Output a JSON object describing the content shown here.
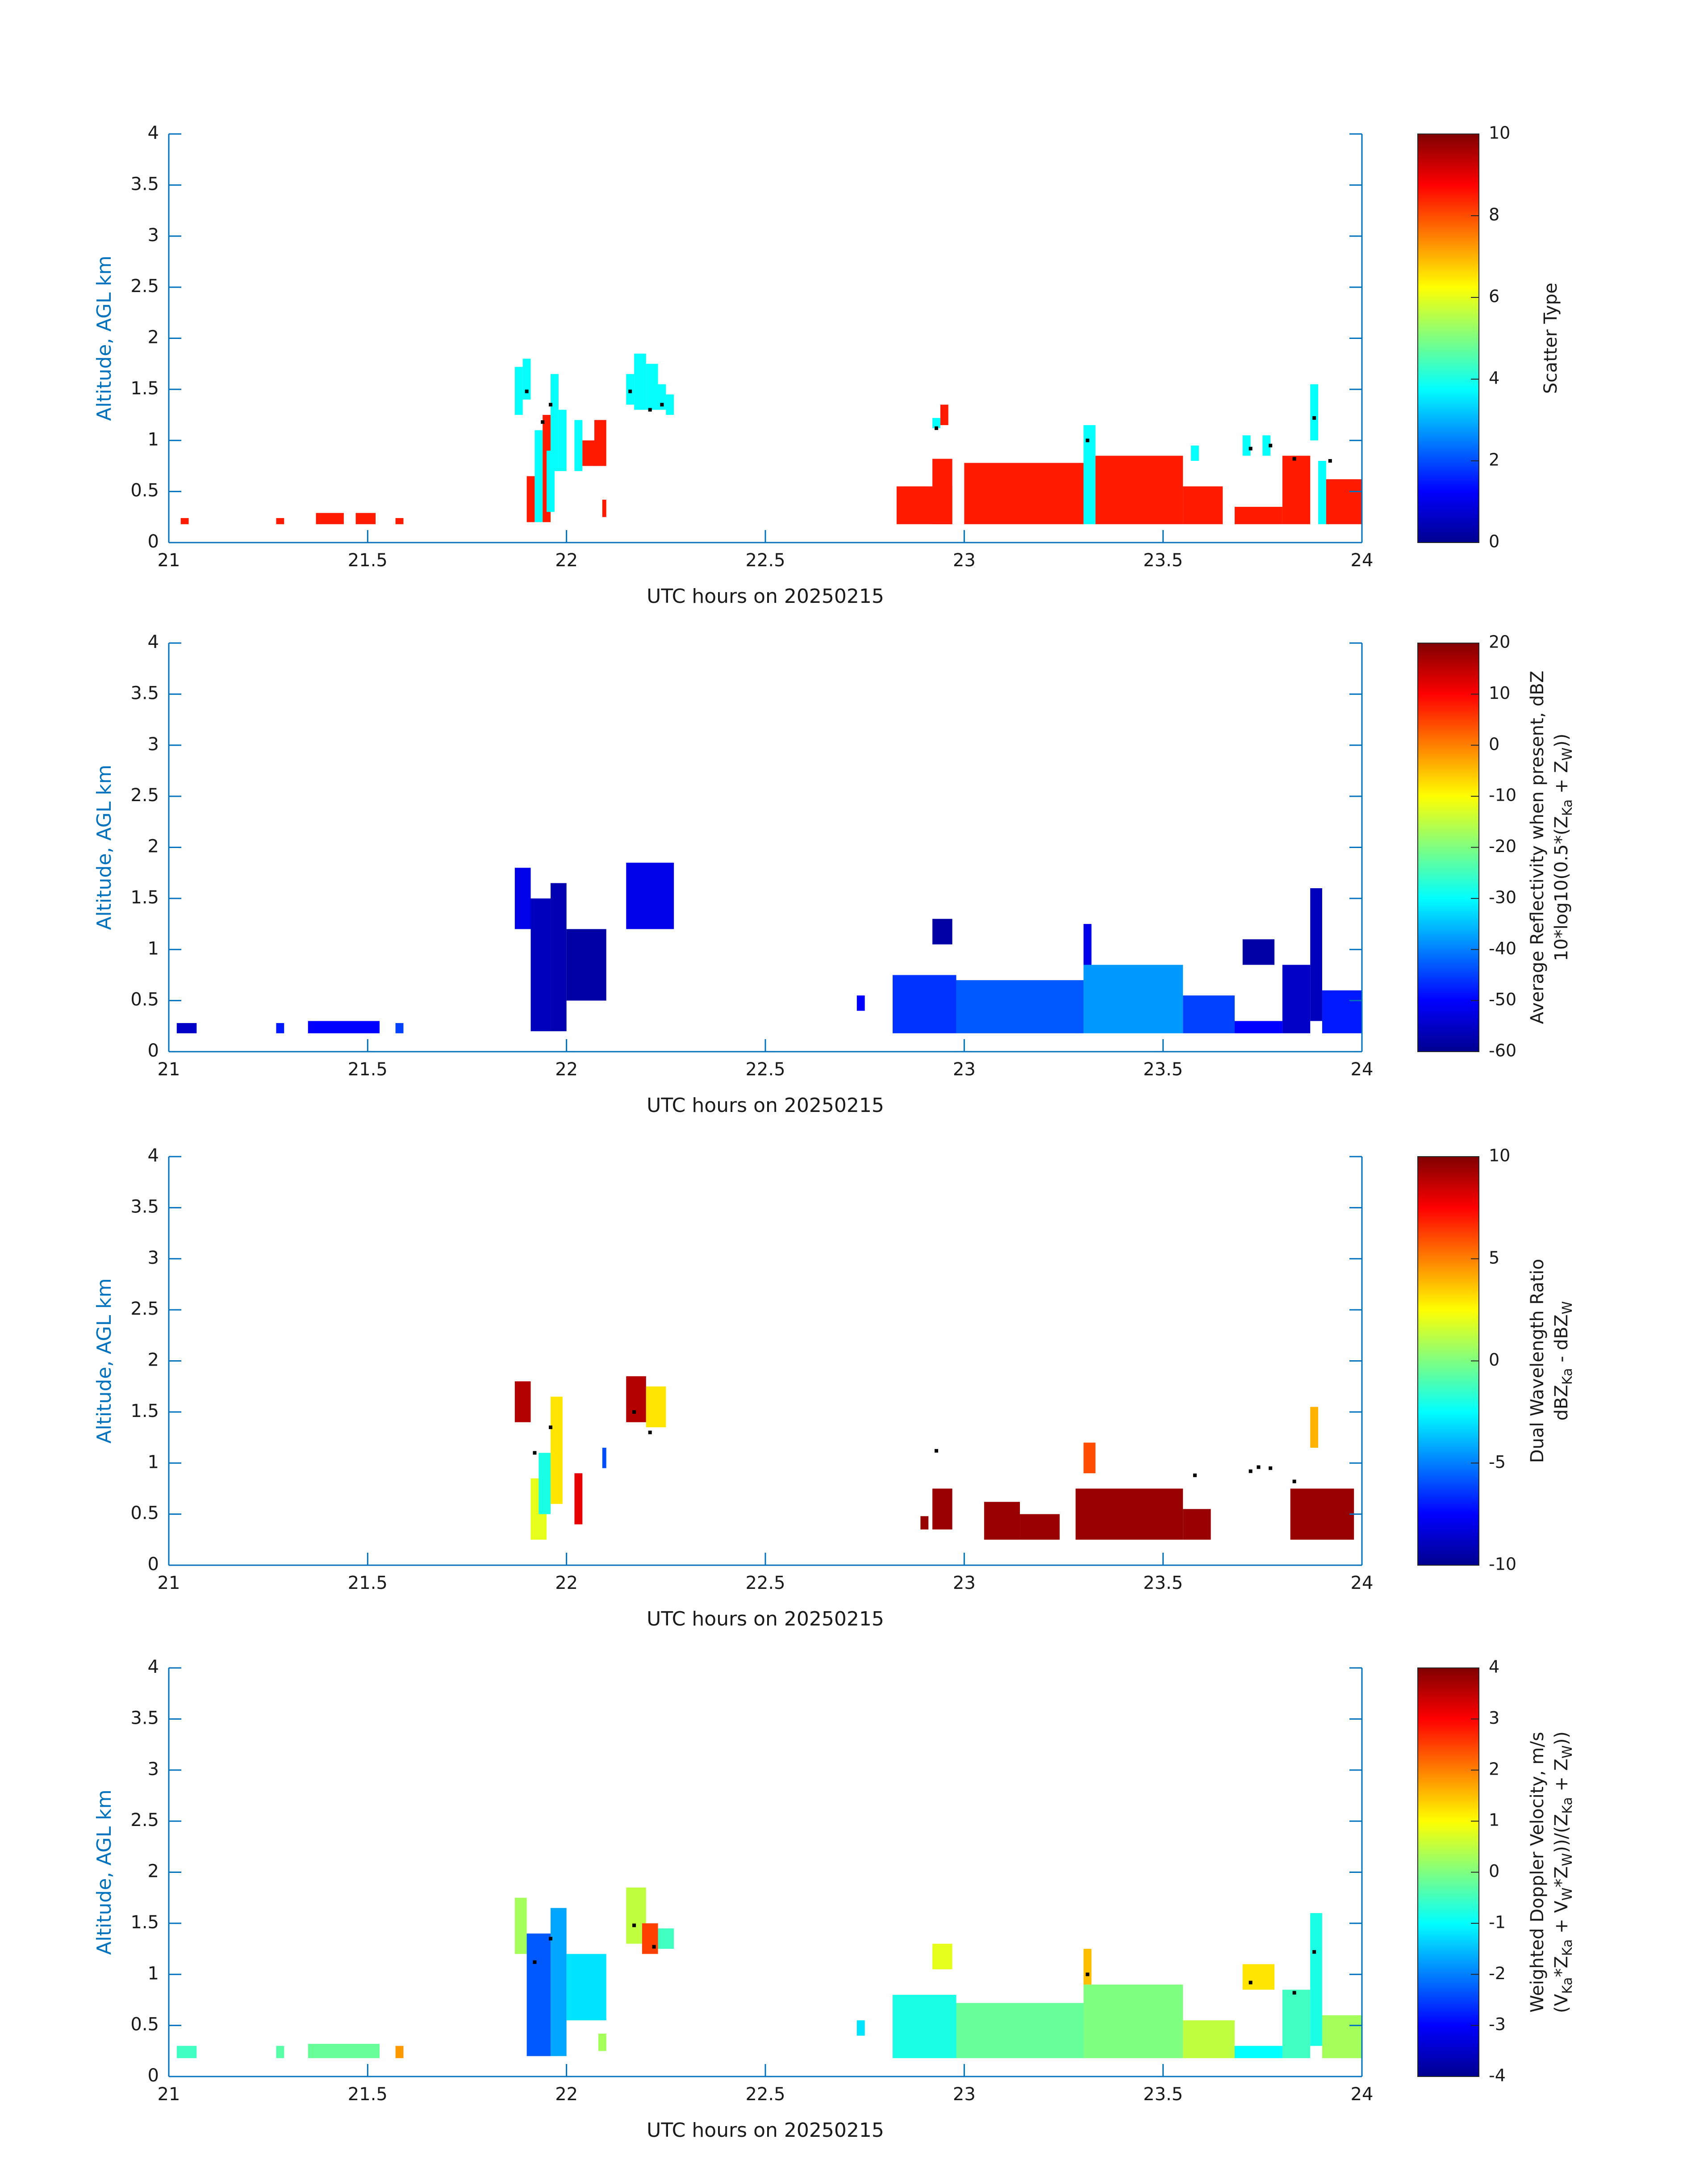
{
  "chart_data": [
    {
      "type": "heatmap",
      "name": "scatter-type",
      "xlabel": "UTC hours on 20250215",
      "ylabel": "Altitude, AGL km",
      "xlim": [
        21,
        24
      ],
      "ylim": [
        0,
        4
      ],
      "xticks": [
        "21",
        "21.5",
        "22",
        "22.5",
        "23",
        "23.5",
        "24"
      ],
      "yticks": [
        "0",
        "0.5",
        "1",
        "1.5",
        "2",
        "2.5",
        "3",
        "3.5",
        "4"
      ],
      "colorbar": {
        "label": "Scatter Type",
        "label_lines": [
          "Scatter Type"
        ],
        "clim": [
          0,
          10
        ],
        "ticks": [
          "0",
          "2",
          "4",
          "6",
          "8",
          "10"
        ]
      },
      "cells": [
        {
          "x0": 21.03,
          "x1": 21.05,
          "y0": 0.18,
          "y1": 0.24,
          "v": 8.5
        },
        {
          "x0": 21.27,
          "x1": 21.29,
          "y0": 0.18,
          "y1": 0.24,
          "v": 8.5
        },
        {
          "x0": 21.37,
          "x1": 21.44,
          "y0": 0.18,
          "y1": 0.29,
          "v": 8.5
        },
        {
          "x0": 21.47,
          "x1": 21.52,
          "y0": 0.18,
          "y1": 0.29,
          "v": 8.5
        },
        {
          "x0": 21.57,
          "x1": 21.59,
          "y0": 0.18,
          "y1": 0.24,
          "v": 8.5
        },
        {
          "x0": 21.87,
          "x1": 21.89,
          "y0": 1.25,
          "y1": 1.72,
          "v": 3.8
        },
        {
          "x0": 21.89,
          "x1": 21.91,
          "y0": 1.4,
          "y1": 1.8,
          "v": 3.8
        },
        {
          "x0": 21.9,
          "x1": 21.92,
          "y0": 0.2,
          "y1": 0.65,
          "v": 8.5
        },
        {
          "x0": 21.92,
          "x1": 21.94,
          "y0": 0.2,
          "y1": 1.1,
          "v": 3.8
        },
        {
          "x0": 21.94,
          "x1": 21.96,
          "y0": 0.2,
          "y1": 1.25,
          "v": 8.5
        },
        {
          "x0": 21.95,
          "x1": 21.97,
          "y0": 0.3,
          "y1": 0.9,
          "v": 3.8
        },
        {
          "x0": 21.96,
          "x1": 21.98,
          "y0": 0.7,
          "y1": 1.65,
          "v": 3.8
        },
        {
          "x0": 21.98,
          "x1": 22.0,
          "y0": 0.7,
          "y1": 1.3,
          "v": 3.8
        },
        {
          "x0": 22.02,
          "x1": 22.04,
          "y0": 0.7,
          "y1": 1.2,
          "v": 3.8
        },
        {
          "x0": 22.04,
          "x1": 22.08,
          "y0": 0.75,
          "y1": 1.0,
          "v": 8.5
        },
        {
          "x0": 22.07,
          "x1": 22.1,
          "y0": 0.75,
          "y1": 1.2,
          "v": 8.5
        },
        {
          "x0": 22.09,
          "x1": 22.1,
          "y0": 0.25,
          "y1": 0.42,
          "v": 8.5
        },
        {
          "x0": 22.15,
          "x1": 22.17,
          "y0": 1.35,
          "y1": 1.65,
          "v": 3.8
        },
        {
          "x0": 22.17,
          "x1": 22.2,
          "y0": 1.3,
          "y1": 1.85,
          "v": 3.8
        },
        {
          "x0": 22.2,
          "x1": 22.23,
          "y0": 1.3,
          "y1": 1.75,
          "v": 3.8
        },
        {
          "x0": 22.23,
          "x1": 22.25,
          "y0": 1.3,
          "y1": 1.55,
          "v": 3.8
        },
        {
          "x0": 22.25,
          "x1": 22.27,
          "y0": 1.25,
          "y1": 1.45,
          "v": 3.8
        },
        {
          "x0": 22.92,
          "x1": 22.94,
          "y0": 1.12,
          "y1": 1.22,
          "v": 3.8
        },
        {
          "x0": 22.94,
          "x1": 22.96,
          "y0": 1.15,
          "y1": 1.35,
          "v": 8.5
        },
        {
          "x0": 22.83,
          "x1": 22.97,
          "y0": 0.18,
          "y1": 0.55,
          "v": 8.5
        },
        {
          "x0": 22.92,
          "x1": 22.97,
          "y0": 0.18,
          "y1": 0.82,
          "v": 8.5
        },
        {
          "x0": 23.0,
          "x1": 23.3,
          "y0": 0.18,
          "y1": 0.78,
          "v": 8.5
        },
        {
          "x0": 23.3,
          "x1": 23.33,
          "y0": 0.18,
          "y1": 1.15,
          "v": 3.8
        },
        {
          "x0": 23.33,
          "x1": 23.55,
          "y0": 0.18,
          "y1": 0.85,
          "v": 8.5
        },
        {
          "x0": 23.55,
          "x1": 23.65,
          "y0": 0.18,
          "y1": 0.55,
          "v": 8.5
        },
        {
          "x0": 23.57,
          "x1": 23.59,
          "y0": 0.8,
          "y1": 0.95,
          "v": 3.8
        },
        {
          "x0": 23.7,
          "x1": 23.72,
          "y0": 0.85,
          "y1": 1.05,
          "v": 3.8
        },
        {
          "x0": 23.75,
          "x1": 23.77,
          "y0": 0.85,
          "y1": 1.05,
          "v": 3.8
        },
        {
          "x0": 23.68,
          "x1": 23.8,
          "y0": 0.18,
          "y1": 0.35,
          "v": 8.5
        },
        {
          "x0": 23.8,
          "x1": 23.87,
          "y0": 0.18,
          "y1": 0.85,
          "v": 8.5
        },
        {
          "x0": 23.87,
          "x1": 23.89,
          "y0": 1.0,
          "y1": 1.55,
          "v": 3.8
        },
        {
          "x0": 23.89,
          "x1": 23.91,
          "y0": 0.18,
          "y1": 0.8,
          "v": 3.8
        },
        {
          "x0": 23.91,
          "x1": 24.0,
          "y0": 0.18,
          "y1": 0.62,
          "v": 8.5
        }
      ],
      "markers": [
        [
          21.9,
          1.48
        ],
        [
          21.96,
          1.35
        ],
        [
          21.94,
          1.18
        ],
        [
          22.16,
          1.48
        ],
        [
          22.21,
          1.3
        ],
        [
          22.24,
          1.35
        ],
        [
          22.93,
          1.12
        ],
        [
          23.31,
          1.0
        ],
        [
          23.72,
          0.92
        ],
        [
          23.77,
          0.95
        ],
        [
          23.83,
          0.82
        ],
        [
          23.88,
          1.22
        ],
        [
          23.92,
          0.8
        ]
      ]
    },
    {
      "type": "heatmap",
      "name": "reflectivity",
      "xlabel": "UTC hours on 20250215",
      "ylabel": "Altitude, AGL km",
      "xlim": [
        21,
        24
      ],
      "ylim": [
        0,
        4
      ],
      "xticks": [
        "21",
        "21.5",
        "22",
        "22.5",
        "23",
        "23.5",
        "24"
      ],
      "yticks": [
        "0",
        "0.5",
        "1",
        "1.5",
        "2",
        "2.5",
        "3",
        "3.5",
        "4"
      ],
      "colorbar": {
        "label": "Average Reflectivity when present, dBZ 10*log10(0.5*(ZKa + ZW))",
        "label_lines": [
          "Average Reflectivity when present, dBZ",
          "10*log10(0.5*(Z",
          "Ka",
          " + Z",
          "W",
          "))"
        ],
        "clim": [
          -60,
          20
        ],
        "ticks": [
          "-60",
          "-50",
          "-40",
          "-30",
          "-20",
          "-10",
          "0",
          "10",
          "20"
        ]
      },
      "cells": [
        {
          "x0": 21.02,
          "x1": 21.07,
          "y0": 0.18,
          "y1": 0.28,
          "v": -55
        },
        {
          "x0": 21.27,
          "x1": 21.29,
          "y0": 0.18,
          "y1": 0.28,
          "v": -48
        },
        {
          "x0": 21.35,
          "x1": 21.53,
          "y0": 0.18,
          "y1": 0.3,
          "v": -50
        },
        {
          "x0": 21.57,
          "x1": 21.59,
          "y0": 0.18,
          "y1": 0.28,
          "v": -45
        },
        {
          "x0": 21.87,
          "x1": 21.91,
          "y0": 1.2,
          "y1": 1.8,
          "v": -52
        },
        {
          "x0": 21.91,
          "x1": 21.96,
          "y0": 0.2,
          "y1": 1.5,
          "v": -56
        },
        {
          "x0": 21.96,
          "x1": 22.0,
          "y0": 0.2,
          "y1": 1.65,
          "v": -57
        },
        {
          "x0": 22.0,
          "x1": 22.1,
          "y0": 0.5,
          "y1": 1.2,
          "v": -58
        },
        {
          "x0": 22.15,
          "x1": 22.27,
          "y0": 1.2,
          "y1": 1.85,
          "v": -52
        },
        {
          "x0": 22.73,
          "x1": 22.75,
          "y0": 0.4,
          "y1": 0.55,
          "v": -50
        },
        {
          "x0": 22.82,
          "x1": 22.98,
          "y0": 0.18,
          "y1": 0.75,
          "v": -46
        },
        {
          "x0": 22.92,
          "x1": 22.97,
          "y0": 1.05,
          "y1": 1.3,
          "v": -58
        },
        {
          "x0": 22.98,
          "x1": 23.3,
          "y0": 0.18,
          "y1": 0.7,
          "v": -43
        },
        {
          "x0": 23.3,
          "x1": 23.55,
          "y0": 0.18,
          "y1": 0.85,
          "v": -38
        },
        {
          "x0": 23.3,
          "x1": 23.32,
          "y0": 0.85,
          "y1": 1.25,
          "v": -52
        },
        {
          "x0": 23.55,
          "x1": 23.68,
          "y0": 0.18,
          "y1": 0.55,
          "v": -45
        },
        {
          "x0": 23.7,
          "x1": 23.78,
          "y0": 0.85,
          "y1": 1.1,
          "v": -58
        },
        {
          "x0": 23.68,
          "x1": 23.8,
          "y0": 0.18,
          "y1": 0.3,
          "v": -50
        },
        {
          "x0": 23.8,
          "x1": 23.87,
          "y0": 0.18,
          "y1": 0.85,
          "v": -55
        },
        {
          "x0": 23.87,
          "x1": 23.9,
          "y0": 0.3,
          "y1": 1.6,
          "v": -56
        },
        {
          "x0": 23.9,
          "x1": 24.0,
          "y0": 0.18,
          "y1": 0.6,
          "v": -48
        }
      ],
      "markers": []
    },
    {
      "type": "heatmap",
      "name": "dual-wavelength-ratio",
      "xlabel": "UTC hours on 20250215",
      "ylabel": "Altitude, AGL km",
      "xlim": [
        21,
        24
      ],
      "ylim": [
        0,
        4
      ],
      "xticks": [
        "21",
        "21.5",
        "22",
        "22.5",
        "23",
        "23.5",
        "24"
      ],
      "yticks": [
        "0",
        "0.5",
        "1",
        "1.5",
        "2",
        "2.5",
        "3",
        "3.5",
        "4"
      ],
      "colorbar": {
        "label": "Dual Wavelength Ratio dBZKa - dBZW",
        "label_lines": [
          "Dual Wavelength Ratio",
          "dBZ",
          "Ka",
          " - dBZ",
          "W"
        ],
        "clim": [
          -10,
          10
        ],
        "ticks": [
          "-10",
          "-5",
          "0",
          "5",
          "10"
        ]
      },
      "cells": [
        {
          "x0": 21.87,
          "x1": 21.91,
          "y0": 1.4,
          "y1": 1.8,
          "v": 9
        },
        {
          "x0": 21.91,
          "x1": 21.95,
          "y0": 0.25,
          "y1": 0.85,
          "v": 2
        },
        {
          "x0": 21.93,
          "x1": 21.96,
          "y0": 0.5,
          "y1": 1.1,
          "v": -2
        },
        {
          "x0": 21.96,
          "x1": 21.99,
          "y0": 0.6,
          "y1": 1.65,
          "v": 3
        },
        {
          "x0": 22.02,
          "x1": 22.04,
          "y0": 0.4,
          "y1": 0.9,
          "v": 8
        },
        {
          "x0": 22.09,
          "x1": 22.1,
          "y0": 0.95,
          "y1": 1.15,
          "v": -6
        },
        {
          "x0": 22.15,
          "x1": 22.2,
          "y0": 1.4,
          "y1": 1.85,
          "v": 9
        },
        {
          "x0": 22.2,
          "x1": 22.25,
          "y0": 1.35,
          "y1": 1.75,
          "v": 3
        },
        {
          "x0": 22.89,
          "x1": 22.91,
          "y0": 0.35,
          "y1": 0.48,
          "v": 9.5
        },
        {
          "x0": 22.92,
          "x1": 22.97,
          "y0": 0.35,
          "y1": 0.75,
          "v": 9.5
        },
        {
          "x0": 23.05,
          "x1": 23.14,
          "y0": 0.25,
          "y1": 0.62,
          "v": 9.5
        },
        {
          "x0": 23.14,
          "x1": 23.24,
          "y0": 0.25,
          "y1": 0.5,
          "v": 9.5
        },
        {
          "x0": 23.28,
          "x1": 23.55,
          "y0": 0.25,
          "y1": 0.75,
          "v": 9.5
        },
        {
          "x0": 23.3,
          "x1": 23.33,
          "y0": 0.9,
          "y1": 1.2,
          "v": 6
        },
        {
          "x0": 23.55,
          "x1": 23.62,
          "y0": 0.25,
          "y1": 0.55,
          "v": 9.5
        },
        {
          "x0": 23.82,
          "x1": 23.98,
          "y0": 0.25,
          "y1": 0.75,
          "v": 9.5
        },
        {
          "x0": 23.87,
          "x1": 23.89,
          "y0": 1.15,
          "y1": 1.55,
          "v": 4
        }
      ],
      "markers": [
        [
          21.92,
          1.1
        ],
        [
          21.96,
          1.35
        ],
        [
          22.17,
          1.5
        ],
        [
          22.21,
          1.3
        ],
        [
          22.93,
          1.12
        ],
        [
          23.58,
          0.88
        ],
        [
          23.72,
          0.92
        ],
        [
          23.74,
          0.96
        ],
        [
          23.77,
          0.95
        ],
        [
          23.83,
          0.82
        ]
      ]
    },
    {
      "type": "heatmap",
      "name": "doppler-velocity",
      "xlabel": "UTC hours on 20250215",
      "ylabel": "Altitude, AGL km",
      "xlim": [
        21,
        24
      ],
      "ylim": [
        0,
        4
      ],
      "xticks": [
        "21",
        "21.5",
        "22",
        "22.5",
        "23",
        "23.5",
        "24"
      ],
      "yticks": [
        "0",
        "0.5",
        "1",
        "1.5",
        "2",
        "2.5",
        "3",
        "3.5",
        "4"
      ],
      "colorbar": {
        "label": "Weighted Doppler Velocity, m/s (VKa*ZKa + VW*ZW))/(ZKa + ZW))",
        "label_lines": [
          "Weighted Doppler Velocity, m/s",
          "(V",
          "Ka",
          "*Z",
          "Ka",
          " + V",
          "W",
          "*Z",
          "W",
          "))/(Z",
          "Ka",
          " + Z",
          "W",
          "))"
        ],
        "clim": [
          -4,
          4
        ],
        "ticks": [
          "-4",
          "-3",
          "-2",
          "-1",
          "0",
          "1",
          "2",
          "3",
          "4"
        ]
      },
      "cells": [
        {
          "x0": 21.02,
          "x1": 21.07,
          "y0": 0.18,
          "y1": 0.3,
          "v": -0.5
        },
        {
          "x0": 21.27,
          "x1": 21.29,
          "y0": 0.18,
          "y1": 0.3,
          "v": -0.3
        },
        {
          "x0": 21.35,
          "x1": 21.53,
          "y0": 0.18,
          "y1": 0.32,
          "v": -0.2
        },
        {
          "x0": 21.57,
          "x1": 21.59,
          "y0": 0.18,
          "y1": 0.3,
          "v": 1.8
        },
        {
          "x0": 21.87,
          "x1": 21.9,
          "y0": 1.2,
          "y1": 1.75,
          "v": 0.3
        },
        {
          "x0": 21.9,
          "x1": 21.96,
          "y0": 0.2,
          "y1": 1.4,
          "v": -2.3
        },
        {
          "x0": 21.96,
          "x1": 22.0,
          "y0": 0.2,
          "y1": 1.65,
          "v": -1.7
        },
        {
          "x0": 22.0,
          "x1": 22.1,
          "y0": 0.55,
          "y1": 1.2,
          "v": -1.2
        },
        {
          "x0": 22.08,
          "x1": 22.1,
          "y0": 0.25,
          "y1": 0.42,
          "v": 0.3
        },
        {
          "x0": 22.15,
          "x1": 22.2,
          "y0": 1.3,
          "y1": 1.85,
          "v": 0.5
        },
        {
          "x0": 22.19,
          "x1": 22.23,
          "y0": 1.2,
          "y1": 1.5,
          "v": 2.5
        },
        {
          "x0": 22.23,
          "x1": 22.27,
          "y0": 1.25,
          "y1": 1.45,
          "v": -0.5
        },
        {
          "x0": 22.73,
          "x1": 22.75,
          "y0": 0.4,
          "y1": 0.55,
          "v": -1.2
        },
        {
          "x0": 22.82,
          "x1": 22.98,
          "y0": 0.18,
          "y1": 0.8,
          "v": -0.8
        },
        {
          "x0": 22.92,
          "x1": 22.97,
          "y0": 1.05,
          "y1": 1.3,
          "v": 0.8
        },
        {
          "x0": 22.98,
          "x1": 23.3,
          "y0": 0.18,
          "y1": 0.72,
          "v": -0.2
        },
        {
          "x0": 23.3,
          "x1": 23.55,
          "y0": 0.18,
          "y1": 0.9,
          "v": 0.0
        },
        {
          "x0": 23.3,
          "x1": 23.32,
          "y0": 0.9,
          "y1": 1.25,
          "v": 1.5
        },
        {
          "x0": 23.55,
          "x1": 23.68,
          "y0": 0.18,
          "y1": 0.55,
          "v": 0.5
        },
        {
          "x0": 23.7,
          "x1": 23.78,
          "y0": 0.85,
          "y1": 1.1,
          "v": 1.2
        },
        {
          "x0": 23.68,
          "x1": 23.8,
          "y0": 0.18,
          "y1": 0.3,
          "v": -1.0
        },
        {
          "x0": 23.8,
          "x1": 23.87,
          "y0": 0.18,
          "y1": 0.85,
          "v": -0.5
        },
        {
          "x0": 23.87,
          "x1": 23.9,
          "y0": 0.3,
          "y1": 1.6,
          "v": -0.8
        },
        {
          "x0": 23.9,
          "x1": 24.0,
          "y0": 0.18,
          "y1": 0.6,
          "v": 0.3
        }
      ],
      "markers": [
        [
          21.96,
          1.35
        ],
        [
          21.92,
          1.12
        ],
        [
          22.17,
          1.48
        ],
        [
          22.22,
          1.27
        ],
        [
          23.31,
          1.0
        ],
        [
          23.72,
          0.92
        ],
        [
          23.83,
          0.82
        ],
        [
          23.88,
          1.22
        ]
      ]
    }
  ]
}
